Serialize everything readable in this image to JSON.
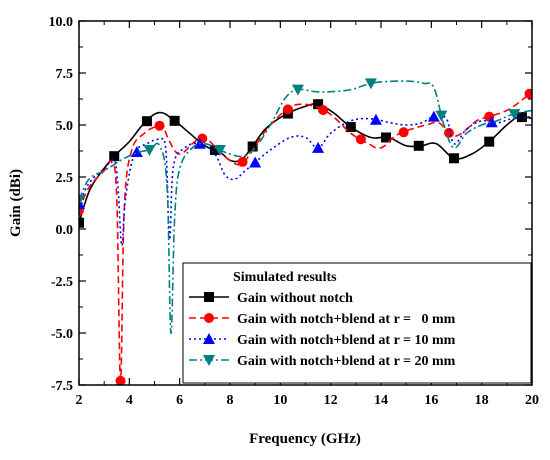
{
  "chart_data": {
    "type": "line",
    "xlabel": "Frequency (GHz)",
    "ylabel": "Gain (dBi)",
    "xlim": [
      2,
      20
    ],
    "ylim": [
      -7.5,
      10.0
    ],
    "xticks": [
      "2",
      "4",
      "6",
      "8",
      "10",
      "12",
      "14",
      "16",
      "18",
      "20"
    ],
    "yticks": [
      "10.0",
      "7.5",
      "5.0",
      "2.5",
      "0.0",
      "-2.5",
      "-5.0",
      "-7.5"
    ],
    "legend": {
      "title": "Simulated results",
      "placement": "bottom-right"
    },
    "series": [
      {
        "name": "Gain without notch",
        "color": "#000000",
        "dash": "solid",
        "marker": "square",
        "points": [
          [
            2.0,
            0.3
          ],
          [
            2.4,
            1.8
          ],
          [
            2.8,
            2.6
          ],
          [
            3.4,
            3.5
          ],
          [
            4.0,
            4.2
          ],
          [
            4.6,
            5.1
          ],
          [
            5.2,
            5.6
          ],
          [
            5.8,
            5.2
          ],
          [
            6.4,
            4.6
          ],
          [
            7.0,
            4.0
          ],
          [
            7.6,
            3.7
          ],
          [
            8.0,
            3.3
          ],
          [
            8.4,
            3.3
          ],
          [
            8.8,
            3.8
          ],
          [
            9.4,
            4.8
          ],
          [
            10.2,
            5.5
          ],
          [
            11.0,
            5.9
          ],
          [
            11.5,
            6.0
          ],
          [
            12.1,
            5.6
          ],
          [
            12.8,
            4.9
          ],
          [
            13.6,
            4.4
          ],
          [
            14.3,
            4.4
          ],
          [
            15.0,
            4.0
          ],
          [
            15.6,
            4.0
          ],
          [
            16.2,
            4.1
          ],
          [
            16.9,
            3.4
          ],
          [
            17.6,
            3.6
          ],
          [
            18.3,
            4.2
          ],
          [
            19.0,
            5.0
          ],
          [
            19.5,
            5.4
          ],
          [
            20.0,
            5.3
          ]
        ],
        "marker_x": [
          2.0,
          3.4,
          4.7,
          5.8,
          7.4,
          8.9,
          10.3,
          11.5,
          12.8,
          14.2,
          15.5,
          16.9,
          18.3,
          19.6
        ]
      },
      {
        "name": "Gain with notch+blend at r =   0 mm",
        "color": "#ff0000",
        "dash": "dashed",
        "marker": "circle",
        "points": [
          [
            2.0,
            0.9
          ],
          [
            2.4,
            2.0
          ],
          [
            3.0,
            2.8
          ],
          [
            3.3,
            3.2
          ],
          [
            3.5,
            1.5
          ],
          [
            3.65,
            -7.3
          ],
          [
            3.8,
            1.0
          ],
          [
            4.1,
            3.8
          ],
          [
            4.6,
            4.6
          ],
          [
            5.0,
            4.9
          ],
          [
            5.3,
            5.0
          ],
          [
            5.6,
            4.2
          ],
          [
            6.0,
            3.6
          ],
          [
            6.6,
            4.2
          ],
          [
            7.0,
            4.4
          ],
          [
            7.6,
            3.7
          ],
          [
            8.0,
            3.3
          ],
          [
            8.4,
            3.1
          ],
          [
            8.8,
            3.6
          ],
          [
            9.4,
            4.7
          ],
          [
            10.2,
            5.7
          ],
          [
            10.8,
            6.0
          ],
          [
            11.6,
            5.8
          ],
          [
            12.2,
            5.3
          ],
          [
            12.8,
            4.6
          ],
          [
            13.5,
            4.1
          ],
          [
            14.0,
            3.9
          ],
          [
            14.6,
            4.5
          ],
          [
            15.2,
            4.8
          ],
          [
            15.8,
            5.0
          ],
          [
            16.3,
            5.1
          ],
          [
            16.8,
            4.5
          ],
          [
            17.2,
            4.6
          ],
          [
            17.8,
            5.2
          ],
          [
            18.3,
            5.4
          ],
          [
            19.0,
            5.7
          ],
          [
            19.5,
            6.1
          ],
          [
            20.0,
            6.6
          ]
        ],
        "marker_x": [
          2.0,
          3.65,
          5.2,
          6.9,
          8.5,
          10.3,
          11.7,
          13.2,
          14.9,
          16.7,
          18.3,
          19.9
        ]
      },
      {
        "name": "Gain with notch+blend at r = 10 mm",
        "color": "#0000ff",
        "dash": "dotted",
        "marker": "triangle",
        "points": [
          [
            2.0,
            1.2
          ],
          [
            2.4,
            2.2
          ],
          [
            3.0,
            2.9
          ],
          [
            3.4,
            3.3
          ],
          [
            3.55,
            2.0
          ],
          [
            3.7,
            -0.8
          ],
          [
            3.85,
            1.5
          ],
          [
            4.2,
            3.6
          ],
          [
            4.7,
            4.1
          ],
          [
            5.2,
            4.3
          ],
          [
            5.45,
            3.8
          ],
          [
            5.6,
            -0.5
          ],
          [
            5.75,
            3.0
          ],
          [
            6.2,
            3.9
          ],
          [
            6.8,
            4.1
          ],
          [
            7.4,
            3.6
          ],
          [
            7.8,
            2.6
          ],
          [
            8.2,
            2.4
          ],
          [
            8.6,
            2.8
          ],
          [
            9.0,
            3.2
          ],
          [
            9.6,
            3.8
          ],
          [
            10.4,
            4.4
          ],
          [
            11.0,
            4.4
          ],
          [
            11.5,
            3.9
          ],
          [
            12.0,
            4.6
          ],
          [
            12.8,
            5.2
          ],
          [
            13.6,
            5.3
          ],
          [
            14.4,
            5.1
          ],
          [
            15.0,
            5.0
          ],
          [
            15.6,
            5.1
          ],
          [
            16.1,
            5.4
          ],
          [
            16.6,
            5.3
          ],
          [
            16.9,
            4.1
          ],
          [
            17.4,
            4.8
          ],
          [
            18.0,
            5.2
          ],
          [
            18.6,
            5.1
          ],
          [
            19.2,
            5.3
          ],
          [
            20.0,
            5.4
          ]
        ],
        "marker_x": [
          2.0,
          4.3,
          6.8,
          9.0,
          11.5,
          13.8,
          16.1,
          18.4
        ]
      },
      {
        "name": "Gain with notch+blend at r = 20 mm",
        "color": "#008080",
        "dash": "dashdot",
        "marker": "triangle-down",
        "points": [
          [
            2.0,
            1.4
          ],
          [
            2.4,
            2.4
          ],
          [
            3.0,
            2.8
          ],
          [
            3.4,
            3.1
          ],
          [
            3.8,
            3.4
          ],
          [
            4.4,
            3.7
          ],
          [
            4.8,
            3.8
          ],
          [
            5.2,
            4.0
          ],
          [
            5.5,
            2.0
          ],
          [
            5.65,
            -5.0
          ],
          [
            5.8,
            0.5
          ],
          [
            6.0,
            2.9
          ],
          [
            6.5,
            3.9
          ],
          [
            7.0,
            4.1
          ],
          [
            7.6,
            3.8
          ],
          [
            8.0,
            3.6
          ],
          [
            8.5,
            3.5
          ],
          [
            9.0,
            3.9
          ],
          [
            9.6,
            5.0
          ],
          [
            10.2,
            6.3
          ],
          [
            10.7,
            6.7
          ],
          [
            11.4,
            6.6
          ],
          [
            12.0,
            6.6
          ],
          [
            12.8,
            6.7
          ],
          [
            13.6,
            7.0
          ],
          [
            14.4,
            7.1
          ],
          [
            15.2,
            7.1
          ],
          [
            15.7,
            7.0
          ],
          [
            16.1,
            6.8
          ],
          [
            16.5,
            5.0
          ],
          [
            16.9,
            3.9
          ],
          [
            17.4,
            4.6
          ],
          [
            18.0,
            5.0
          ],
          [
            18.6,
            5.2
          ],
          [
            19.2,
            5.5
          ],
          [
            20.0,
            5.7
          ]
        ],
        "marker_x": [
          2.0,
          4.8,
          7.6,
          10.7,
          13.6,
          16.4,
          19.3
        ]
      }
    ]
  }
}
